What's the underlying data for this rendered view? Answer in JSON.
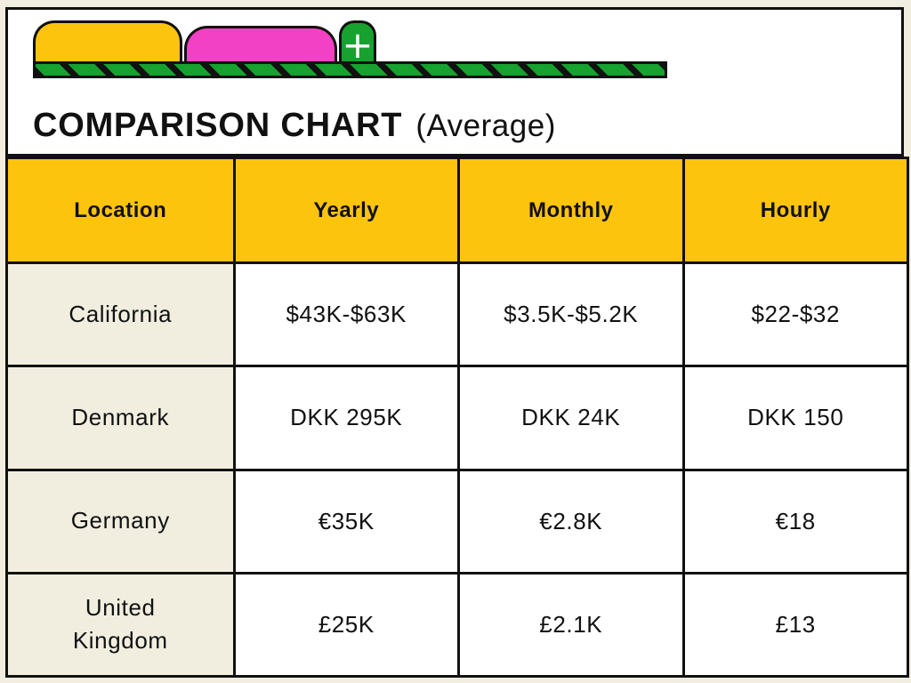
{
  "colors": {
    "background_cream": "#F1EEE0",
    "card_white": "#FFFFFF",
    "border_black": "#111111",
    "accent_yellow": "#FDC40E",
    "accent_pink": "#F241C4",
    "accent_green": "#17A12F"
  },
  "header": {
    "title": "COMPARISON CHART",
    "subtitle": "(Average)",
    "plus_icon": "+"
  },
  "chart_data": {
    "type": "table",
    "title": "COMPARISON CHART (Average)",
    "columns": [
      "Location",
      "Yearly",
      "Monthly",
      "Hourly"
    ],
    "rows": [
      [
        "California",
        "$43K-$63K",
        "$3.5K-$5.2K",
        "$22-$32"
      ],
      [
        "Denmark",
        "DKK 295K",
        "DKK 24K",
        "DKK 150"
      ],
      [
        "Germany",
        "€35K",
        "€2.8K",
        "€18"
      ],
      [
        "United Kingdom",
        "£25K",
        "£2.1K",
        "£13"
      ]
    ],
    "layout": {
      "header_row_bg": "#FDC40E",
      "location_column_bg": "#F1EEE0",
      "data_cells_bg": "#FFFFFF",
      "grid": "black 3px borders, 4 equal columns, 5 rows"
    }
  }
}
